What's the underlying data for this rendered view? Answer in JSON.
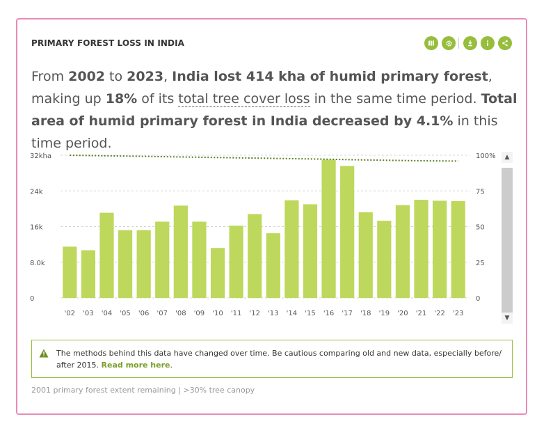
{
  "widget": {
    "title": "PRIMARY FOREST LOSS IN INDIA",
    "toolbar": {
      "map_icon": "map-icon",
      "settings_icon": "gear-icon",
      "download_icon": "download-icon",
      "info_icon": "info-icon",
      "share_icon": "share-icon"
    },
    "sentence": {
      "p1": "From ",
      "start_year": "2002",
      "p2": " to ",
      "end_year": "2023",
      "p3": ", ",
      "loss_phrase": "India lost 414 kha of humid primary forest",
      "p4": ", making up ",
      "percent": "18%",
      "p5": " of its ",
      "link_text": "total tree cover loss",
      "p6": " in the same time period. ",
      "decrease_phrase": "Total area of humid primary forest in India decreased by 4.1%",
      "p7": " in this time period."
    },
    "warning": {
      "text": "The methods behind this data have changed over time. Be cautious comparing old and new data, especially before/ after 2015.",
      "link": "Read more here",
      "after_link": "."
    },
    "footnote": "2001 primary forest extent remaining | >30% tree canopy",
    "colors": {
      "bar": "#bdd85c",
      "line": "#5b7d23",
      "accent": "#97bd3d",
      "border": "#e98bb6"
    }
  },
  "chart_data": {
    "type": "bar",
    "categories": [
      "'02",
      "'03",
      "'04",
      "'05",
      "'06",
      "'07",
      "'08",
      "'09",
      "'10",
      "'11",
      "'12",
      "'13",
      "'14",
      "'15",
      "'16",
      "'17",
      "'18",
      "'19",
      "'20",
      "'21",
      "'22",
      "'23"
    ],
    "series": [
      {
        "values": [
          11500,
          10700,
          19100,
          15200,
          15200,
          17100,
          20700,
          17100,
          11200,
          16200,
          18800,
          14500,
          21900,
          21000,
          31000,
          29600,
          19200,
          17300,
          20800,
          22000,
          21800,
          21700
        ]
      },
      {
        "values": [
          100,
          99.8,
          99.6,
          99.4,
          99.2,
          99.0,
          98.8,
          98.6,
          98.4,
          98.2,
          98.0,
          97.8,
          97.6,
          97.4,
          97.2,
          96.9,
          96.7,
          96.5,
          96.3,
          96.1,
          96.0,
          95.9
        ]
      }
    ],
    "ylim": [
      0,
      32000
    ],
    "y_ticks": [
      {
        "value": 0,
        "label": "0"
      },
      {
        "value": 8000,
        "label": "8.0k"
      },
      {
        "value": 16000,
        "label": "16k"
      },
      {
        "value": 24000,
        "label": "24k"
      },
      {
        "value": 32000,
        "label": "32kha"
      }
    ],
    "y2lim": [
      0,
      100
    ],
    "y2_ticks": [
      {
        "value": 0,
        "label": "0"
      },
      {
        "value": 25,
        "label": "25"
      },
      {
        "value": 50,
        "label": "50"
      },
      {
        "value": 75,
        "label": "75"
      },
      {
        "value": 100,
        "label": "100%"
      }
    ],
    "grid": true
  }
}
